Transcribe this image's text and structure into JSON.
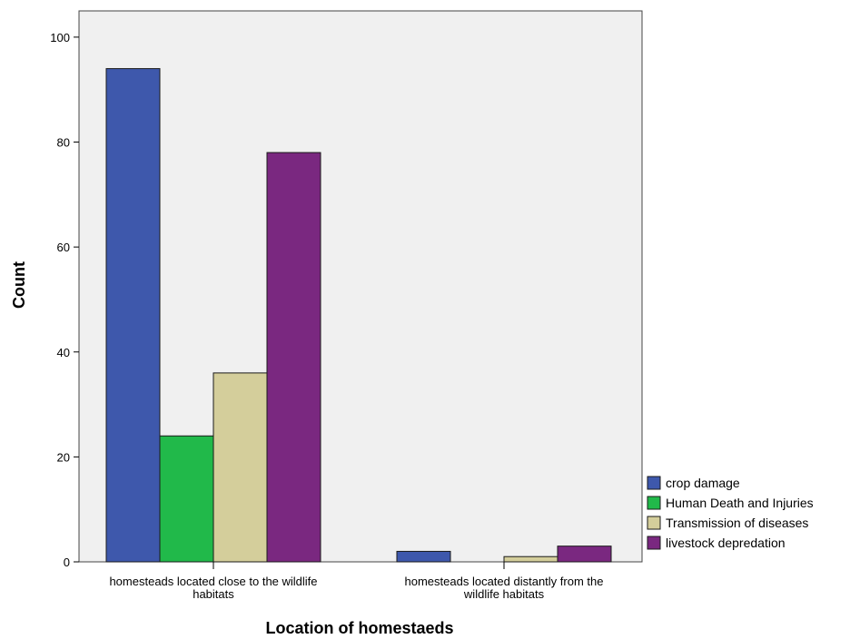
{
  "chart_data": {
    "type": "bar",
    "title": "",
    "xlabel": "Location of homestaeds",
    "ylabel": "Count",
    "categories": [
      [
        "homesteads located close to the wildlife",
        "habitats"
      ],
      [
        "homesteads located distantly from the",
        "wildlife habitats"
      ]
    ],
    "series": [
      {
        "name": "crop damage",
        "color": "#3e58ac",
        "values": [
          94,
          2
        ]
      },
      {
        "name": "Human Death and Injuries",
        "color": "#21b94a",
        "values": [
          24,
          0
        ]
      },
      {
        "name": "Transmission of diseases",
        "color": "#d4ce9b",
        "values": [
          36,
          1
        ]
      },
      {
        "name": "livestock depredation",
        "color": "#7a2880",
        "values": [
          78,
          3
        ]
      }
    ],
    "ylim": [
      0,
      105
    ],
    "yticks": [
      0,
      20,
      40,
      60,
      80,
      100
    ],
    "grid": false,
    "legend_position": "right-bottom",
    "plot_background": "#f0f0f0"
  }
}
